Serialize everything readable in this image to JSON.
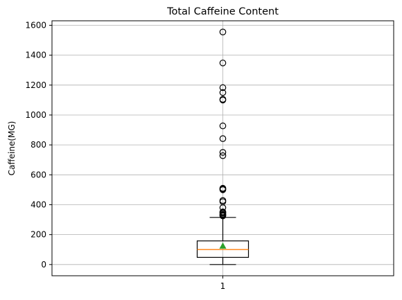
{
  "chart_data": {
    "type": "box",
    "title": "Total Caffeine Content",
    "xlabel": "",
    "ylabel": "Caffeine(MG)",
    "x_ticks": [
      "1"
    ],
    "y_ticks": [
      0,
      200,
      400,
      600,
      800,
      1000,
      1200,
      1400,
      1600
    ],
    "ylim": [
      -75,
      1630
    ],
    "grid": true,
    "series": [
      {
        "position": 1,
        "whisker_low": 0,
        "q1": 48,
        "median": 100,
        "q3": 158,
        "whisker_high": 315,
        "mean": 125,
        "outliers": [
          325,
          330,
          335,
          342,
          348,
          352,
          380,
          420,
          428,
          500,
          505,
          510,
          728,
          750,
          842,
          927,
          1100,
          1105,
          1150,
          1183,
          1348,
          1555
        ]
      }
    ],
    "colors": {
      "box": "#000000",
      "median": "#ff7f0e",
      "mean_marker": "#2ca02c",
      "grid": "#b0b0b0",
      "outlier": "#000000"
    }
  }
}
